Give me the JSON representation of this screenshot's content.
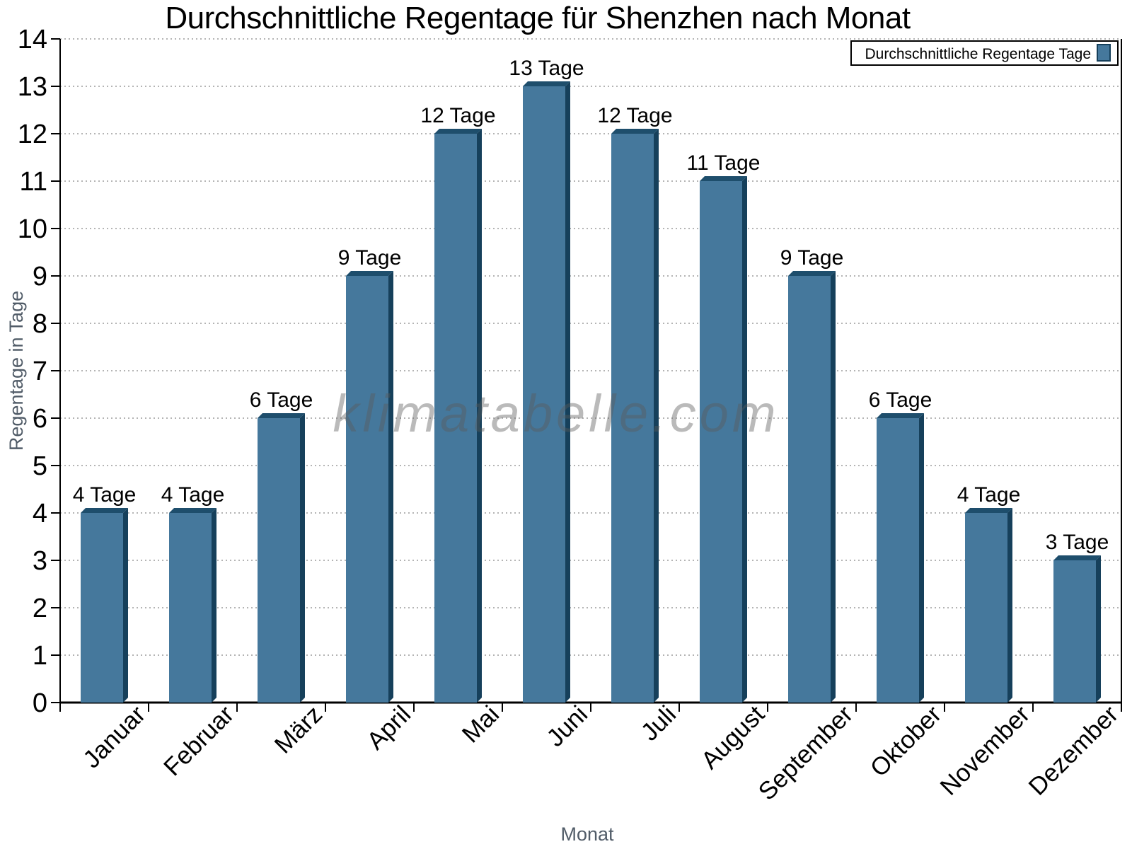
{
  "chart_data": {
    "type": "bar",
    "title": "Durchschnittliche Regentage für Shenzhen nach Monat",
    "xlabel": "Monat",
    "ylabel": "Regentage in Tage",
    "categories": [
      "Januar",
      "Februar",
      "März",
      "April",
      "Mai",
      "Juni",
      "Juli",
      "August",
      "September",
      "Oktober",
      "November",
      "Dezember"
    ],
    "values": [
      4,
      4,
      6,
      9,
      12,
      13,
      12,
      11,
      9,
      6,
      4,
      3
    ],
    "value_labels": [
      "4 Tage",
      "4 Tage",
      "6 Tage",
      "9 Tage",
      "12 Tage",
      "13 Tage",
      "12 Tage",
      "11 Tage",
      "9 Tage",
      "6 Tage",
      "4 Tage",
      "3 Tage"
    ],
    "value_label_unit": "Tage",
    "ylim": [
      0,
      14
    ],
    "ytick_step": 1,
    "yticks": [
      0,
      1,
      2,
      3,
      4,
      5,
      6,
      7,
      8,
      9,
      10,
      11,
      12,
      13,
      14
    ],
    "grid": "horizontal-dotted",
    "legend_position": "top-right",
    "legend_label": "Durchschnittliche Regentage Tage",
    "watermark": "klimatabelle.com",
    "bar_style": "3d-extruded",
    "x_label_rotation": -45,
    "colors": {
      "bar_face": "#45789C",
      "bar_top": "#1E4E6C",
      "bar_side": "#16405B",
      "grid": "#B4B4B4",
      "axis": "#000000",
      "tick_label": "#000000",
      "axis_title": "#515C68",
      "legend_border": "#000000",
      "watermark": "#5A5A5A"
    }
  }
}
